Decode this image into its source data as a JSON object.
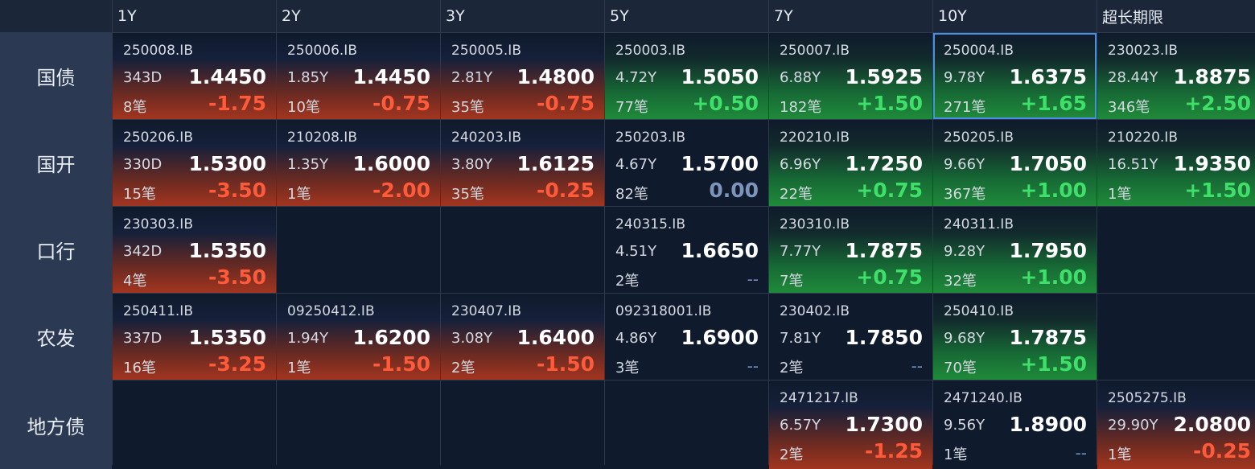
{
  "columns": [
    "1Y",
    "2Y",
    "3Y",
    "5Y",
    "7Y",
    "10Y",
    "超长期限"
  ],
  "rows": [
    {
      "label": "国债",
      "cells": [
        {
          "code": "250008.IB",
          "tenor": "343D",
          "yield": "1.4450",
          "count": "8笔",
          "change": "-1.75",
          "tone": "neg"
        },
        {
          "code": "250006.IB",
          "tenor": "1.85Y",
          "yield": "1.4450",
          "count": "10笔",
          "change": "-0.75",
          "tone": "neg"
        },
        {
          "code": "250005.IB",
          "tenor": "2.81Y",
          "yield": "1.4800",
          "count": "35笔",
          "change": "-0.75",
          "tone": "neg"
        },
        {
          "code": "250003.IB",
          "tenor": "4.72Y",
          "yield": "1.5050",
          "count": "77笔",
          "change": "+0.50",
          "tone": "pos"
        },
        {
          "code": "250007.IB",
          "tenor": "6.88Y",
          "yield": "1.5925",
          "count": "182笔",
          "change": "+1.50",
          "tone": "pos"
        },
        {
          "code": "250004.IB",
          "tenor": "9.78Y",
          "yield": "1.6375",
          "count": "271笔",
          "change": "+1.65",
          "tone": "pos",
          "selected": true
        },
        {
          "code": "230023.IB",
          "tenor": "28.44Y",
          "yield": "1.8875",
          "count": "346笔",
          "change": "+2.50",
          "tone": "pos"
        }
      ]
    },
    {
      "label": "国开",
      "cells": [
        {
          "code": "250206.IB",
          "tenor": "330D",
          "yield": "1.5300",
          "count": "15笔",
          "change": "-3.50",
          "tone": "neg"
        },
        {
          "code": "210208.IB",
          "tenor": "1.35Y",
          "yield": "1.6000",
          "count": "1笔",
          "change": "-2.00",
          "tone": "neg"
        },
        {
          "code": "240203.IB",
          "tenor": "3.80Y",
          "yield": "1.6125",
          "count": "35笔",
          "change": "-0.25",
          "tone": "neg"
        },
        {
          "code": "250203.IB",
          "tenor": "4.67Y",
          "yield": "1.5700",
          "count": "82笔",
          "change": "0.00",
          "tone": "zero"
        },
        {
          "code": "220210.IB",
          "tenor": "6.96Y",
          "yield": "1.7250",
          "count": "22笔",
          "change": "+0.75",
          "tone": "pos"
        },
        {
          "code": "250205.IB",
          "tenor": "9.66Y",
          "yield": "1.7050",
          "count": "367笔",
          "change": "+1.00",
          "tone": "pos"
        },
        {
          "code": "210220.IB",
          "tenor": "16.51Y",
          "yield": "1.9350",
          "count": "1笔",
          "change": "+1.50",
          "tone": "pos"
        }
      ]
    },
    {
      "label": "口行",
      "cells": [
        {
          "code": "230303.IB",
          "tenor": "342D",
          "yield": "1.5350",
          "count": "4笔",
          "change": "-3.50",
          "tone": "neg"
        },
        null,
        null,
        {
          "code": "240315.IB",
          "tenor": "4.51Y",
          "yield": "1.6650",
          "count": "2笔",
          "change": "--",
          "tone": "none"
        },
        {
          "code": "230310.IB",
          "tenor": "7.77Y",
          "yield": "1.7875",
          "count": "7笔",
          "change": "+0.75",
          "tone": "pos"
        },
        {
          "code": "240311.IB",
          "tenor": "9.28Y",
          "yield": "1.7950",
          "count": "32笔",
          "change": "+1.00",
          "tone": "pos"
        },
        null
      ]
    },
    {
      "label": "农发",
      "cells": [
        {
          "code": "250411.IB",
          "tenor": "337D",
          "yield": "1.5350",
          "count": "16笔",
          "change": "-3.25",
          "tone": "neg"
        },
        {
          "code": "09250412.IB",
          "tenor": "1.94Y",
          "yield": "1.6200",
          "count": "1笔",
          "change": "-1.50",
          "tone": "neg"
        },
        {
          "code": "230407.IB",
          "tenor": "3.08Y",
          "yield": "1.6400",
          "count": "2笔",
          "change": "-1.50",
          "tone": "neg"
        },
        {
          "code": "092318001.IB",
          "tenor": "4.86Y",
          "yield": "1.6900",
          "count": "3笔",
          "change": "--",
          "tone": "none"
        },
        {
          "code": "230402.IB",
          "tenor": "7.81Y",
          "yield": "1.7850",
          "count": "2笔",
          "change": "--",
          "tone": "none"
        },
        {
          "code": "250410.IB",
          "tenor": "9.68Y",
          "yield": "1.7875",
          "count": "70笔",
          "change": "+1.50",
          "tone": "pos"
        },
        null
      ]
    },
    {
      "label": "地方债",
      "cells": [
        null,
        null,
        null,
        null,
        {
          "code": "2471217.IB",
          "tenor": "6.57Y",
          "yield": "1.7300",
          "count": "2笔",
          "change": "-1.25",
          "tone": "neg"
        },
        {
          "code": "2471240.IB",
          "tenor": "9.56Y",
          "yield": "1.8900",
          "count": "1笔",
          "change": "--",
          "tone": "none"
        },
        {
          "code": "2505275.IB",
          "tenor": "29.90Y",
          "yield": "2.0800",
          "count": "1笔",
          "change": "-0.25",
          "tone": "neg"
        }
      ]
    }
  ],
  "colors": {
    "negative": "#ff5a3a",
    "positive": "#3fe06a",
    "selection": "#4a8fe6",
    "background": "#0f1a2c"
  }
}
